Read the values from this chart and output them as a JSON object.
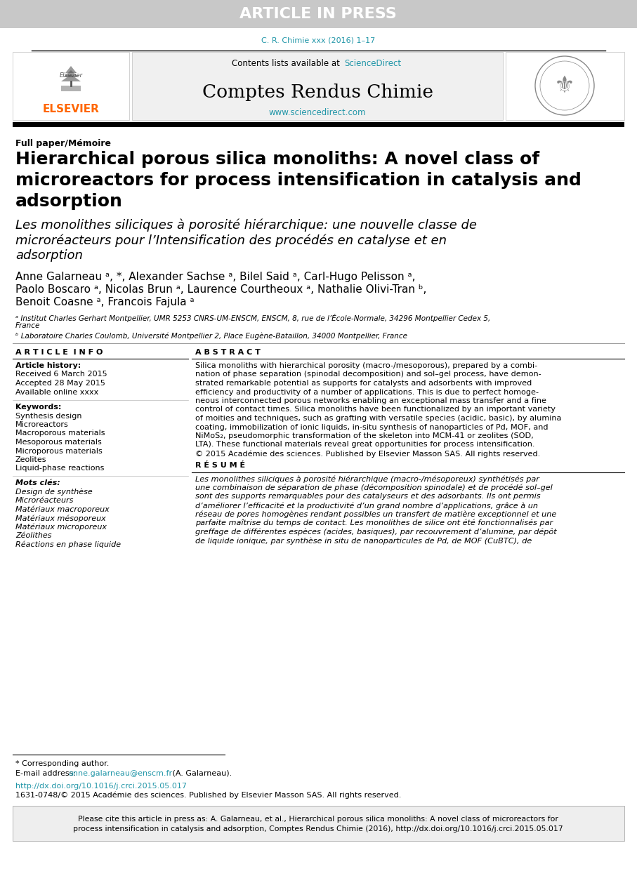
{
  "article_in_press_text": "ARTICLE IN PRESS",
  "header_box_color": "#c8c8c8",
  "journal_ref": "C. R. Chimie xxx (2016) 1–17",
  "journal_ref_color": "#2196a8",
  "journal_name": "Comptes Rendus Chimie",
  "contents_text": "Contents lists available at ",
  "sciencedirect_text": "ScienceDirect",
  "sciencedirect_color": "#2196a8",
  "website_text": "www.sciencedirect.com",
  "website_color": "#2196a8",
  "elsevier_color": "#ff6600",
  "section_label": "Full paper/Mémoire",
  "title_en_line1": "Hierarchical porous silica monoliths: A novel class of",
  "title_en_line2": "microreactors for process intensification in catalysis and",
  "title_en_line3": "adsorption",
  "title_fr_line1": "Les monolithes siliciques à porosité hiérarchique: une nouvelle classe de",
  "title_fr_line2": "microréacteurs pour l’Intensification des procédés en catalyse et en",
  "title_fr_line3": "adsorption",
  "authors_line1": "Anne Galarneau ᵃ, *, Alexander Sachse ᵃ, Bilel Said ᵃ, Carl-Hugo Pelisson ᵃ,",
  "authors_line2": "Paolo Boscaro ᵃ, Nicolas Brun ᵃ, Laurence Courtheoux ᵃ, Nathalie Olivi-Tran ᵇ,",
  "authors_line3": "Benoit Coasne ᵃ, Francois Fajula ᵃ",
  "affil_a": "ᵃ Institut Charles Gerhart Montpellier, UMR 5253 CNRS-UM-ENSCM, ENSCM, 8, rue de l’École-Normale, 34296 Montpellier Cedex 5,",
  "affil_a2": "France",
  "affil_b": "ᵇ Laboratoire Charles Coulomb, Université Montpellier 2, Place Eugène-Bataillon, 34000 Montpellier, France",
  "article_info_header": "A R T I C L E  I N F O",
  "article_history_header": "Article history:",
  "received": "Received 6 March 2015",
  "accepted": "Accepted 28 May 2015",
  "available": "Available online xxxx",
  "keywords_header": "Keywords:",
  "keywords": [
    "Synthesis design",
    "Microreactors",
    "Macroporous materials",
    "Mesoporous materials",
    "Microporous materials",
    "Zeolites",
    "Liquid-phase reactions"
  ],
  "mots_cles_header": "Mots clés:",
  "mots_cles": [
    "Design de synthèse",
    "Microréacteurs",
    "Matériaux macroporeux",
    "Matériaux mésoporeux",
    "Matériaux microporeux",
    "Zéolithes",
    "Réactions en phase liquide"
  ],
  "abstract_header": "A B S T R A C T",
  "abstract_lines": [
    "Silica monoliths with hierarchical porosity (macro-/mesoporous), prepared by a combi-",
    "nation of phase separation (spinodal decomposition) and sol–gel process, have demon-",
    "strated remarkable potential as supports for catalysts and adsorbents with improved",
    "efficiency and productivity of a number of applications. This is due to perfect homoge-",
    "neous interconnected porous networks enabling an exceptional mass transfer and a fine",
    "control of contact times. Silica monoliths have been functionalized by an important variety",
    "of moities and techniques, such as grafting with versatile species (acidic, basic), by alumina",
    "coating, immobilization of ionic liquids, in-situ synthesis of nanoparticles of Pd, MOF, and",
    "NiMoS₂, pseudomorphic transformation of the skeleton into MCM-41 or zeolites (SOD,",
    "LTA). These functional materials reveal great opportunities for process intensification.",
    "© 2015 Académie des sciences. Published by Elsevier Masson SAS. All rights reserved."
  ],
  "resume_header": "R É S U M É",
  "resume_lines": [
    "Les monolithes siliciques à porosité hiérarchique (macro-/mésoporeux) synthétisés par",
    "une combinaison de séparation de phase (décomposition spinodale) et de procédé sol–gel",
    "sont des supports remarquables pour des catalyseurs et des adsorbants. Ils ont permis",
    "d’améliorer l’efficacité et la productivité d’un grand nombre d’applications, grâce à un",
    "réseau de pores homogènes rendant possibles un transfert de matière exceptionnel et une",
    "parfaite maîtrise du temps de contact. Les monolithes de silice ont été fonctionnalisés par",
    "greffage de différentes espèces (acides, basiques), par recouvrement d’alumine, par dépôt",
    "de liquide ionique, par synthèse in situ de nanoparticules de Pd, de MOF (CuBTC), de"
  ],
  "footnote_star": "* Corresponding author.",
  "email_label": "E-mail address: ",
  "email_link": "anne.galarneau@enscm.fr",
  "email_suffix": " (A. Galarneau).",
  "email_color": "#2196a8",
  "doi_text": "http://dx.doi.org/10.1016/j.crci.2015.05.017",
  "doi_color": "#2196a8",
  "issn_text": "1631-0748/© 2015 Académie des sciences. Published by Elsevier Masson SAS. All rights reserved.",
  "cite_line1": "Please cite this article in press as: A. Galarneau, et al., Hierarchical porous silica monoliths: A novel class of microreactors for",
  "cite_line2": "process intensification in catalysis and adsorption, Comptes Rendus Chimie (2016), http://dx.doi.org/10.1016/j.crci.2015.05.017",
  "cite_box_color": "#eeeeee"
}
